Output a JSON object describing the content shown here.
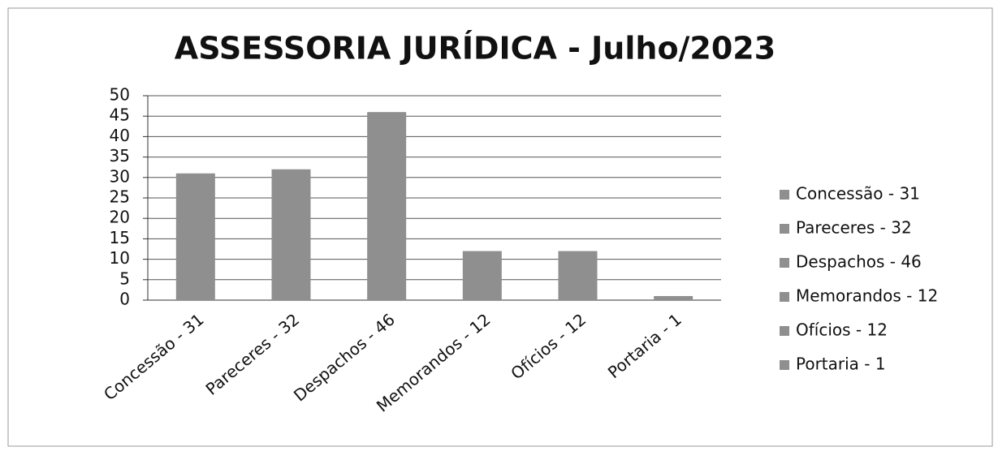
{
  "chart_data": {
    "type": "bar",
    "title": "ASSESSORIA JURÍDICA - Julho/2023",
    "categories": [
      "Concessão - 31",
      "Pareceres - 32",
      "Despachos - 46",
      "Memorandos - 12",
      "Ofícios - 12",
      "Portaria - 1"
    ],
    "values": [
      31,
      32,
      46,
      12,
      12,
      1
    ],
    "color": "#8f8f8f",
    "ylim": [
      0,
      50
    ],
    "yticks": [
      0,
      5,
      10,
      15,
      20,
      25,
      30,
      35,
      40,
      45,
      50
    ],
    "grid": true,
    "legend": "right"
  }
}
